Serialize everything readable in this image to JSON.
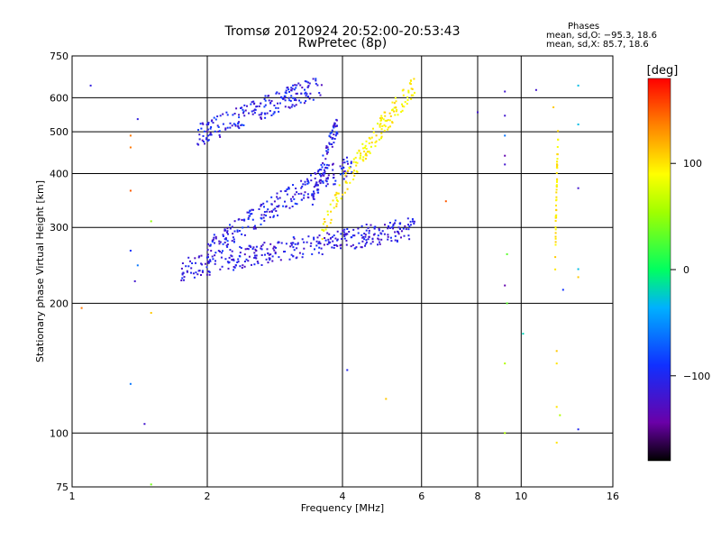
{
  "chart_data": {
    "type": "scatter",
    "title": "Tromsø 20120924 20:52:00-20:53:43",
    "subtitle": "RwPretec (8p)",
    "xlabel": "Frequency [MHz]",
    "ylabel": "Stationary phase Virtual Height [km]",
    "xscale": "log",
    "yscale": "log",
    "xlim": [
      1,
      16
    ],
    "ylim": [
      75,
      750
    ],
    "xticks": [
      1,
      2,
      4,
      6,
      8,
      10,
      16
    ],
    "xtick_labels": [
      "1",
      "2",
      "4",
      "6",
      "8",
      "10",
      "16"
    ],
    "yticks": [
      75,
      100,
      200,
      300,
      400,
      500,
      600,
      750
    ],
    "ytick_labels": [
      "75",
      "100",
      "200",
      "300",
      "400",
      "500",
      "600",
      "750"
    ],
    "grid": true,
    "legend": {
      "title": "Phases",
      "line1": "mean, sd,O: −95.3, 18.6",
      "line2": "mean, sd,X:  85.7, 18.6"
    },
    "colorbar": {
      "label": "[deg]",
      "range": [
        -180,
        180
      ],
      "ticks": [
        100,
        0,
        -100
      ],
      "tick_labels": [
        "100",
        "0",
        "−100"
      ],
      "colormap": "rainbow (black-purple-blue-cyan-green-yellow-red)"
    },
    "series": [
      {
        "points": [
          [
            1.1,
            640,
            -110
          ],
          [
            1.35,
            460,
            140
          ],
          [
            1.35,
            490,
            140
          ],
          [
            1.35,
            365,
            150
          ],
          [
            1.4,
            535,
            -110
          ],
          [
            1.4,
            245,
            -60
          ],
          [
            1.35,
            265,
            -90
          ],
          [
            1.38,
            225,
            -120
          ],
          [
            1.35,
            130,
            -60
          ],
          [
            1.45,
            105,
            -120
          ],
          [
            1.5,
            190,
            110
          ],
          [
            1.05,
            195,
            140
          ],
          [
            1.5,
            310,
            50
          ],
          [
            1.5,
            76,
            40
          ],
          [
            6.8,
            345,
            150
          ],
          [
            8.0,
            555,
            -120
          ],
          [
            9.2,
            620,
            -120
          ],
          [
            9.2,
            545,
            -120
          ],
          [
            9.2,
            490,
            -60
          ],
          [
            9.2,
            440,
            -140
          ],
          [
            9.2,
            420,
            -120
          ],
          [
            9.3,
            260,
            30
          ],
          [
            9.2,
            220,
            -140
          ],
          [
            9.3,
            200,
            30
          ],
          [
            9.2,
            145,
            60
          ],
          [
            9.2,
            100,
            60
          ],
          [
            10.1,
            170,
            -20
          ],
          [
            10.8,
            625,
            -120
          ],
          [
            11.8,
            570,
            110
          ],
          [
            12.4,
            215,
            -90
          ],
          [
            13.4,
            640,
            -30
          ],
          [
            13.4,
            520,
            -30
          ],
          [
            13.4,
            370,
            -120
          ],
          [
            13.4,
            240,
            -30
          ],
          [
            13.4,
            230,
            110
          ],
          [
            13.4,
            102,
            -100
          ],
          [
            12.0,
            115,
            100
          ],
          [
            12.2,
            110,
            60
          ],
          [
            12.0,
            95,
            100
          ],
          [
            12.0,
            155,
            110
          ],
          [
            12.0,
            145,
            100
          ],
          [
            5.0,
            120,
            110
          ],
          [
            4.1,
            140,
            -100
          ]
        ]
      }
    ],
    "regions": [
      {
        "x": [
          1.75,
          5.8
        ],
        "y_start": 240,
        "y_end": 300,
        "phase_range": [
          -130,
          -90
        ]
      },
      {
        "x": [
          2.0,
          4.2
        ],
        "y_start": 265,
        "y_end": 420,
        "phase_range": [
          -130,
          -80
        ]
      },
      {
        "x": [
          1.9,
          3.6
        ],
        "y_start": 490,
        "y_end": 640,
        "phase_range": [
          -130,
          -80
        ]
      },
      {
        "x": [
          3.4,
          3.9
        ],
        "y_start": 330,
        "y_end": 520,
        "phase_range": [
          -130,
          -80
        ]
      },
      {
        "x": [
          3.6,
          5.8
        ],
        "y_start": 290,
        "y_end": 640,
        "phase_range": [
          80,
          110
        ]
      },
      {
        "x": [
          11.9,
          12.1
        ],
        "y_start": 240,
        "y_end": 520,
        "phase_range": [
          85,
          110
        ]
      }
    ]
  }
}
